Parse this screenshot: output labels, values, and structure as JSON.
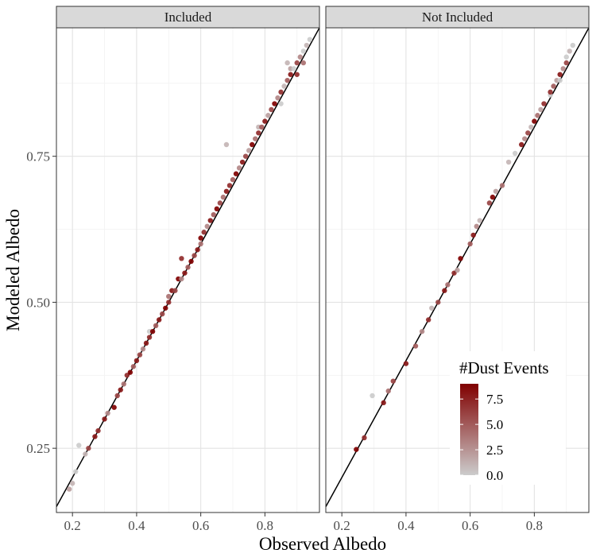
{
  "chart_data": {
    "type": "scatter",
    "facets": [
      "Included",
      "Not Included"
    ],
    "xlabel": "Observed Albedo",
    "ylabel": "Modeled Albedo",
    "xlim": [
      0.15,
      0.97
    ],
    "ylim": [
      0.14,
      0.97
    ],
    "x_ticks": [
      0.2,
      0.4,
      0.6,
      0.8
    ],
    "x_tick_labels": [
      "0.2",
      "0.4",
      "0.6",
      "0.8"
    ],
    "y_ticks": [
      0.25,
      0.5,
      0.75
    ],
    "y_tick_labels": [
      "0.25",
      "0.50",
      "0.75"
    ],
    "grid": true,
    "reference_line": {
      "type": "1:1",
      "slope": 1,
      "intercept": 0,
      "color": "#000000"
    },
    "color_scale": {
      "title": "#Dust Events",
      "low_color": "#cccccc",
      "high_color": "#800000",
      "range": [
        0,
        9
      ],
      "ticks": [
        0,
        2.5,
        5,
        7.5
      ],
      "tick_labels": [
        "0.0",
        "2.5",
        "5.0",
        "7.5"
      ],
      "legend_position": "inside-bottom-right"
    },
    "panels": [
      {
        "facet": "Included",
        "points": [
          [
            0.19,
            0.18,
            2
          ],
          [
            0.2,
            0.19,
            1
          ],
          [
            0.21,
            0.21,
            0
          ],
          [
            0.22,
            0.255,
            0
          ],
          [
            0.24,
            0.24,
            1
          ],
          [
            0.25,
            0.25,
            6
          ],
          [
            0.27,
            0.27,
            8
          ],
          [
            0.28,
            0.28,
            7
          ],
          [
            0.3,
            0.3,
            8
          ],
          [
            0.31,
            0.31,
            3
          ],
          [
            0.33,
            0.32,
            9
          ],
          [
            0.34,
            0.34,
            6
          ],
          [
            0.35,
            0.35,
            8
          ],
          [
            0.36,
            0.36,
            4
          ],
          [
            0.37,
            0.375,
            7
          ],
          [
            0.38,
            0.38,
            9
          ],
          [
            0.39,
            0.39,
            5
          ],
          [
            0.4,
            0.4,
            8
          ],
          [
            0.41,
            0.41,
            6
          ],
          [
            0.42,
            0.42,
            3
          ],
          [
            0.43,
            0.43,
            8
          ],
          [
            0.44,
            0.45,
            0
          ],
          [
            0.44,
            0.44,
            7
          ],
          [
            0.45,
            0.45,
            9
          ],
          [
            0.46,
            0.46,
            5
          ],
          [
            0.47,
            0.47,
            8
          ],
          [
            0.48,
            0.48,
            6
          ],
          [
            0.49,
            0.49,
            9
          ],
          [
            0.5,
            0.5,
            7
          ],
          [
            0.5,
            0.51,
            4
          ],
          [
            0.51,
            0.52,
            8
          ],
          [
            0.52,
            0.52,
            6
          ],
          [
            0.53,
            0.54,
            9
          ],
          [
            0.54,
            0.54,
            3
          ],
          [
            0.54,
            0.575,
            7
          ],
          [
            0.55,
            0.55,
            8
          ],
          [
            0.56,
            0.56,
            5
          ],
          [
            0.57,
            0.57,
            9
          ],
          [
            0.58,
            0.58,
            6
          ],
          [
            0.59,
            0.59,
            8
          ],
          [
            0.6,
            0.6,
            4
          ],
          [
            0.6,
            0.61,
            9
          ],
          [
            0.61,
            0.62,
            7
          ],
          [
            0.62,
            0.63,
            3
          ],
          [
            0.63,
            0.64,
            8
          ],
          [
            0.64,
            0.65,
            5
          ],
          [
            0.65,
            0.66,
            9
          ],
          [
            0.66,
            0.67,
            6
          ],
          [
            0.67,
            0.68,
            4
          ],
          [
            0.68,
            0.69,
            8
          ],
          [
            0.68,
            0.77,
            1
          ],
          [
            0.69,
            0.7,
            7
          ],
          [
            0.7,
            0.71,
            5
          ],
          [
            0.71,
            0.72,
            9
          ],
          [
            0.72,
            0.73,
            3
          ],
          [
            0.73,
            0.74,
            8
          ],
          [
            0.74,
            0.75,
            6
          ],
          [
            0.75,
            0.76,
            2
          ],
          [
            0.76,
            0.77,
            9
          ],
          [
            0.77,
            0.78,
            4
          ],
          [
            0.78,
            0.79,
            7
          ],
          [
            0.78,
            0.8,
            1
          ],
          [
            0.79,
            0.8,
            5
          ],
          [
            0.8,
            0.81,
            8
          ],
          [
            0.81,
            0.82,
            2
          ],
          [
            0.82,
            0.83,
            6
          ],
          [
            0.83,
            0.84,
            9
          ],
          [
            0.84,
            0.85,
            3
          ],
          [
            0.85,
            0.86,
            7
          ],
          [
            0.86,
            0.87,
            1
          ],
          [
            0.87,
            0.88,
            5
          ],
          [
            0.88,
            0.89,
            8
          ],
          [
            0.88,
            0.9,
            2
          ],
          [
            0.89,
            0.9,
            0
          ],
          [
            0.9,
            0.91,
            6
          ],
          [
            0.91,
            0.92,
            3
          ],
          [
            0.92,
            0.93,
            0
          ],
          [
            0.93,
            0.94,
            1
          ],
          [
            0.94,
            0.95,
            0
          ],
          [
            0.87,
            0.91,
            1
          ],
          [
            0.9,
            0.89,
            7
          ],
          [
            0.85,
            0.84,
            0
          ],
          [
            0.92,
            0.91,
            4
          ]
        ]
      },
      {
        "facet": "Not Included",
        "points": [
          [
            0.245,
            0.248,
            9
          ],
          [
            0.27,
            0.268,
            7
          ],
          [
            0.295,
            0.34,
            0
          ],
          [
            0.33,
            0.328,
            8
          ],
          [
            0.345,
            0.348,
            4
          ],
          [
            0.36,
            0.365,
            6
          ],
          [
            0.4,
            0.395,
            8
          ],
          [
            0.43,
            0.425,
            5
          ],
          [
            0.45,
            0.45,
            3
          ],
          [
            0.47,
            0.47,
            7
          ],
          [
            0.48,
            0.49,
            1
          ],
          [
            0.5,
            0.5,
            6
          ],
          [
            0.52,
            0.52,
            8
          ],
          [
            0.53,
            0.53,
            4
          ],
          [
            0.55,
            0.55,
            7
          ],
          [
            0.56,
            0.555,
            2
          ],
          [
            0.57,
            0.575,
            9
          ],
          [
            0.6,
            0.6,
            5
          ],
          [
            0.61,
            0.615,
            8
          ],
          [
            0.62,
            0.63,
            3
          ],
          [
            0.63,
            0.64,
            1
          ],
          [
            0.66,
            0.67,
            6
          ],
          [
            0.67,
            0.68,
            9
          ],
          [
            0.68,
            0.69,
            2
          ],
          [
            0.7,
            0.7,
            4
          ],
          [
            0.72,
            0.74,
            1
          ],
          [
            0.74,
            0.755,
            0
          ],
          [
            0.76,
            0.77,
            8
          ],
          [
            0.77,
            0.78,
            3
          ],
          [
            0.78,
            0.79,
            6
          ],
          [
            0.79,
            0.8,
            1
          ],
          [
            0.8,
            0.81,
            9
          ],
          [
            0.81,
            0.82,
            4
          ],
          [
            0.82,
            0.83,
            2
          ],
          [
            0.83,
            0.84,
            7
          ],
          [
            0.85,
            0.855,
            0
          ],
          [
            0.86,
            0.87,
            5
          ],
          [
            0.87,
            0.88,
            2
          ],
          [
            0.88,
            0.89,
            8
          ],
          [
            0.89,
            0.9,
            3
          ],
          [
            0.9,
            0.91,
            6
          ],
          [
            0.9,
            0.92,
            0
          ],
          [
            0.91,
            0.93,
            1
          ],
          [
            0.92,
            0.94,
            0
          ],
          [
            0.88,
            0.88,
            0
          ],
          [
            0.85,
            0.86,
            7
          ]
        ]
      }
    ]
  }
}
